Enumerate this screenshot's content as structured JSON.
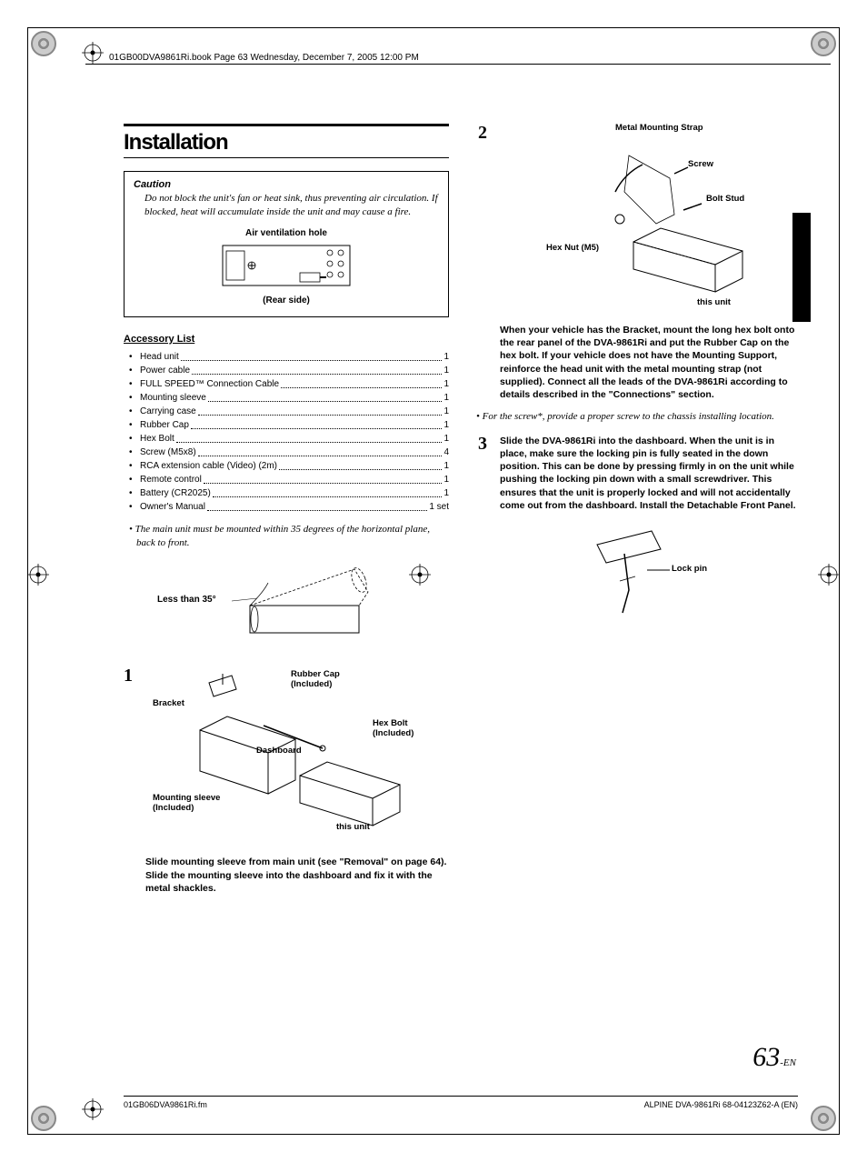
{
  "header": {
    "book_line": "01GB00DVA9861Ri.book  Page 63  Wednesday, December 7, 2005  12:00 PM"
  },
  "section_title": "Installation",
  "caution": {
    "title": "Caution",
    "text": "Do not block the unit's fan or heat sink, thus preventing air circulation. If blocked, heat will accumulate inside the unit and may cause a fire.",
    "label_top": "Air ventilation hole",
    "label_bottom": "(Rear side)"
  },
  "accessory": {
    "heading": "Accessory List",
    "items": [
      {
        "name": "Head unit",
        "qty": "1"
      },
      {
        "name": "Power cable",
        "qty": "1"
      },
      {
        "name": "FULL SPEED™ Connection Cable",
        "qty": "1"
      },
      {
        "name": "Mounting sleeve",
        "qty": "1"
      },
      {
        "name": "Carrying case",
        "qty": "1"
      },
      {
        "name": "Rubber Cap",
        "qty": "1"
      },
      {
        "name": "Hex Bolt",
        "qty": "1"
      },
      {
        "name": "Screw (M5x8)",
        "qty": "4"
      },
      {
        "name": "RCA extension cable (Video) (2m)",
        "qty": "1"
      },
      {
        "name": "Remote control",
        "qty": "1"
      },
      {
        "name": "Battery (CR2025)",
        "qty": "1"
      },
      {
        "name": "Owner's Manual",
        "qty": "1 set"
      }
    ]
  },
  "mount_note": "• The main unit must be mounted within 35 degrees of the horizontal plane, back to front.",
  "angle_label": "Less than 35°",
  "step1": {
    "num": "1",
    "labels": {
      "rubber_cap": "Rubber Cap\n(Included)",
      "bracket": "Bracket",
      "hex_bolt": "Hex Bolt\n(Included)",
      "dashboard": "Dashboard",
      "mounting_sleeve": "Mounting sleeve\n(Included)",
      "this_unit": "this unit"
    },
    "text": "Slide mounting sleeve from main unit (see \"Removal\" on page 64). Slide the mounting sleeve into the dashboard and fix it with the metal shackles."
  },
  "step2": {
    "num": "2",
    "labels": {
      "strap": "Metal Mounting Strap",
      "screw": "Screw",
      "bolt_stud": "Bolt Stud",
      "hex_nut": "Hex Nut (M5)",
      "this_unit": "this unit"
    },
    "text": "When your vehicle has the Bracket, mount the long hex bolt onto the rear panel of the DVA-9861Ri and put the Rubber Cap on the hex bolt. If your vehicle does not have the Mounting Support, reinforce the head unit with the metal mounting strap (not supplied). Connect all the leads of the DVA-9861Ri according to details described in the \"Connections\" section.",
    "note": "•  For the screw*, provide a proper screw to the chassis installing location."
  },
  "step3": {
    "num": "3",
    "text": "Slide the DVA-9861Ri into the dashboard. When the unit is in place, make sure the locking pin is fully seated in the down position. This can be done by pressing firmly in on the unit while pushing the locking pin down with a small screwdriver. This ensures that the unit is properly locked and will not accidentally come out from the dashboard. Install the Detachable Front Panel.",
    "lock_pin": "Lock pin"
  },
  "page": {
    "number": "63",
    "suffix": "-EN"
  },
  "footer": {
    "left": "01GB06DVA9861Ri.fm",
    "right": "ALPINE DVA-9861Ri 68-04123Z62-A (EN)"
  }
}
